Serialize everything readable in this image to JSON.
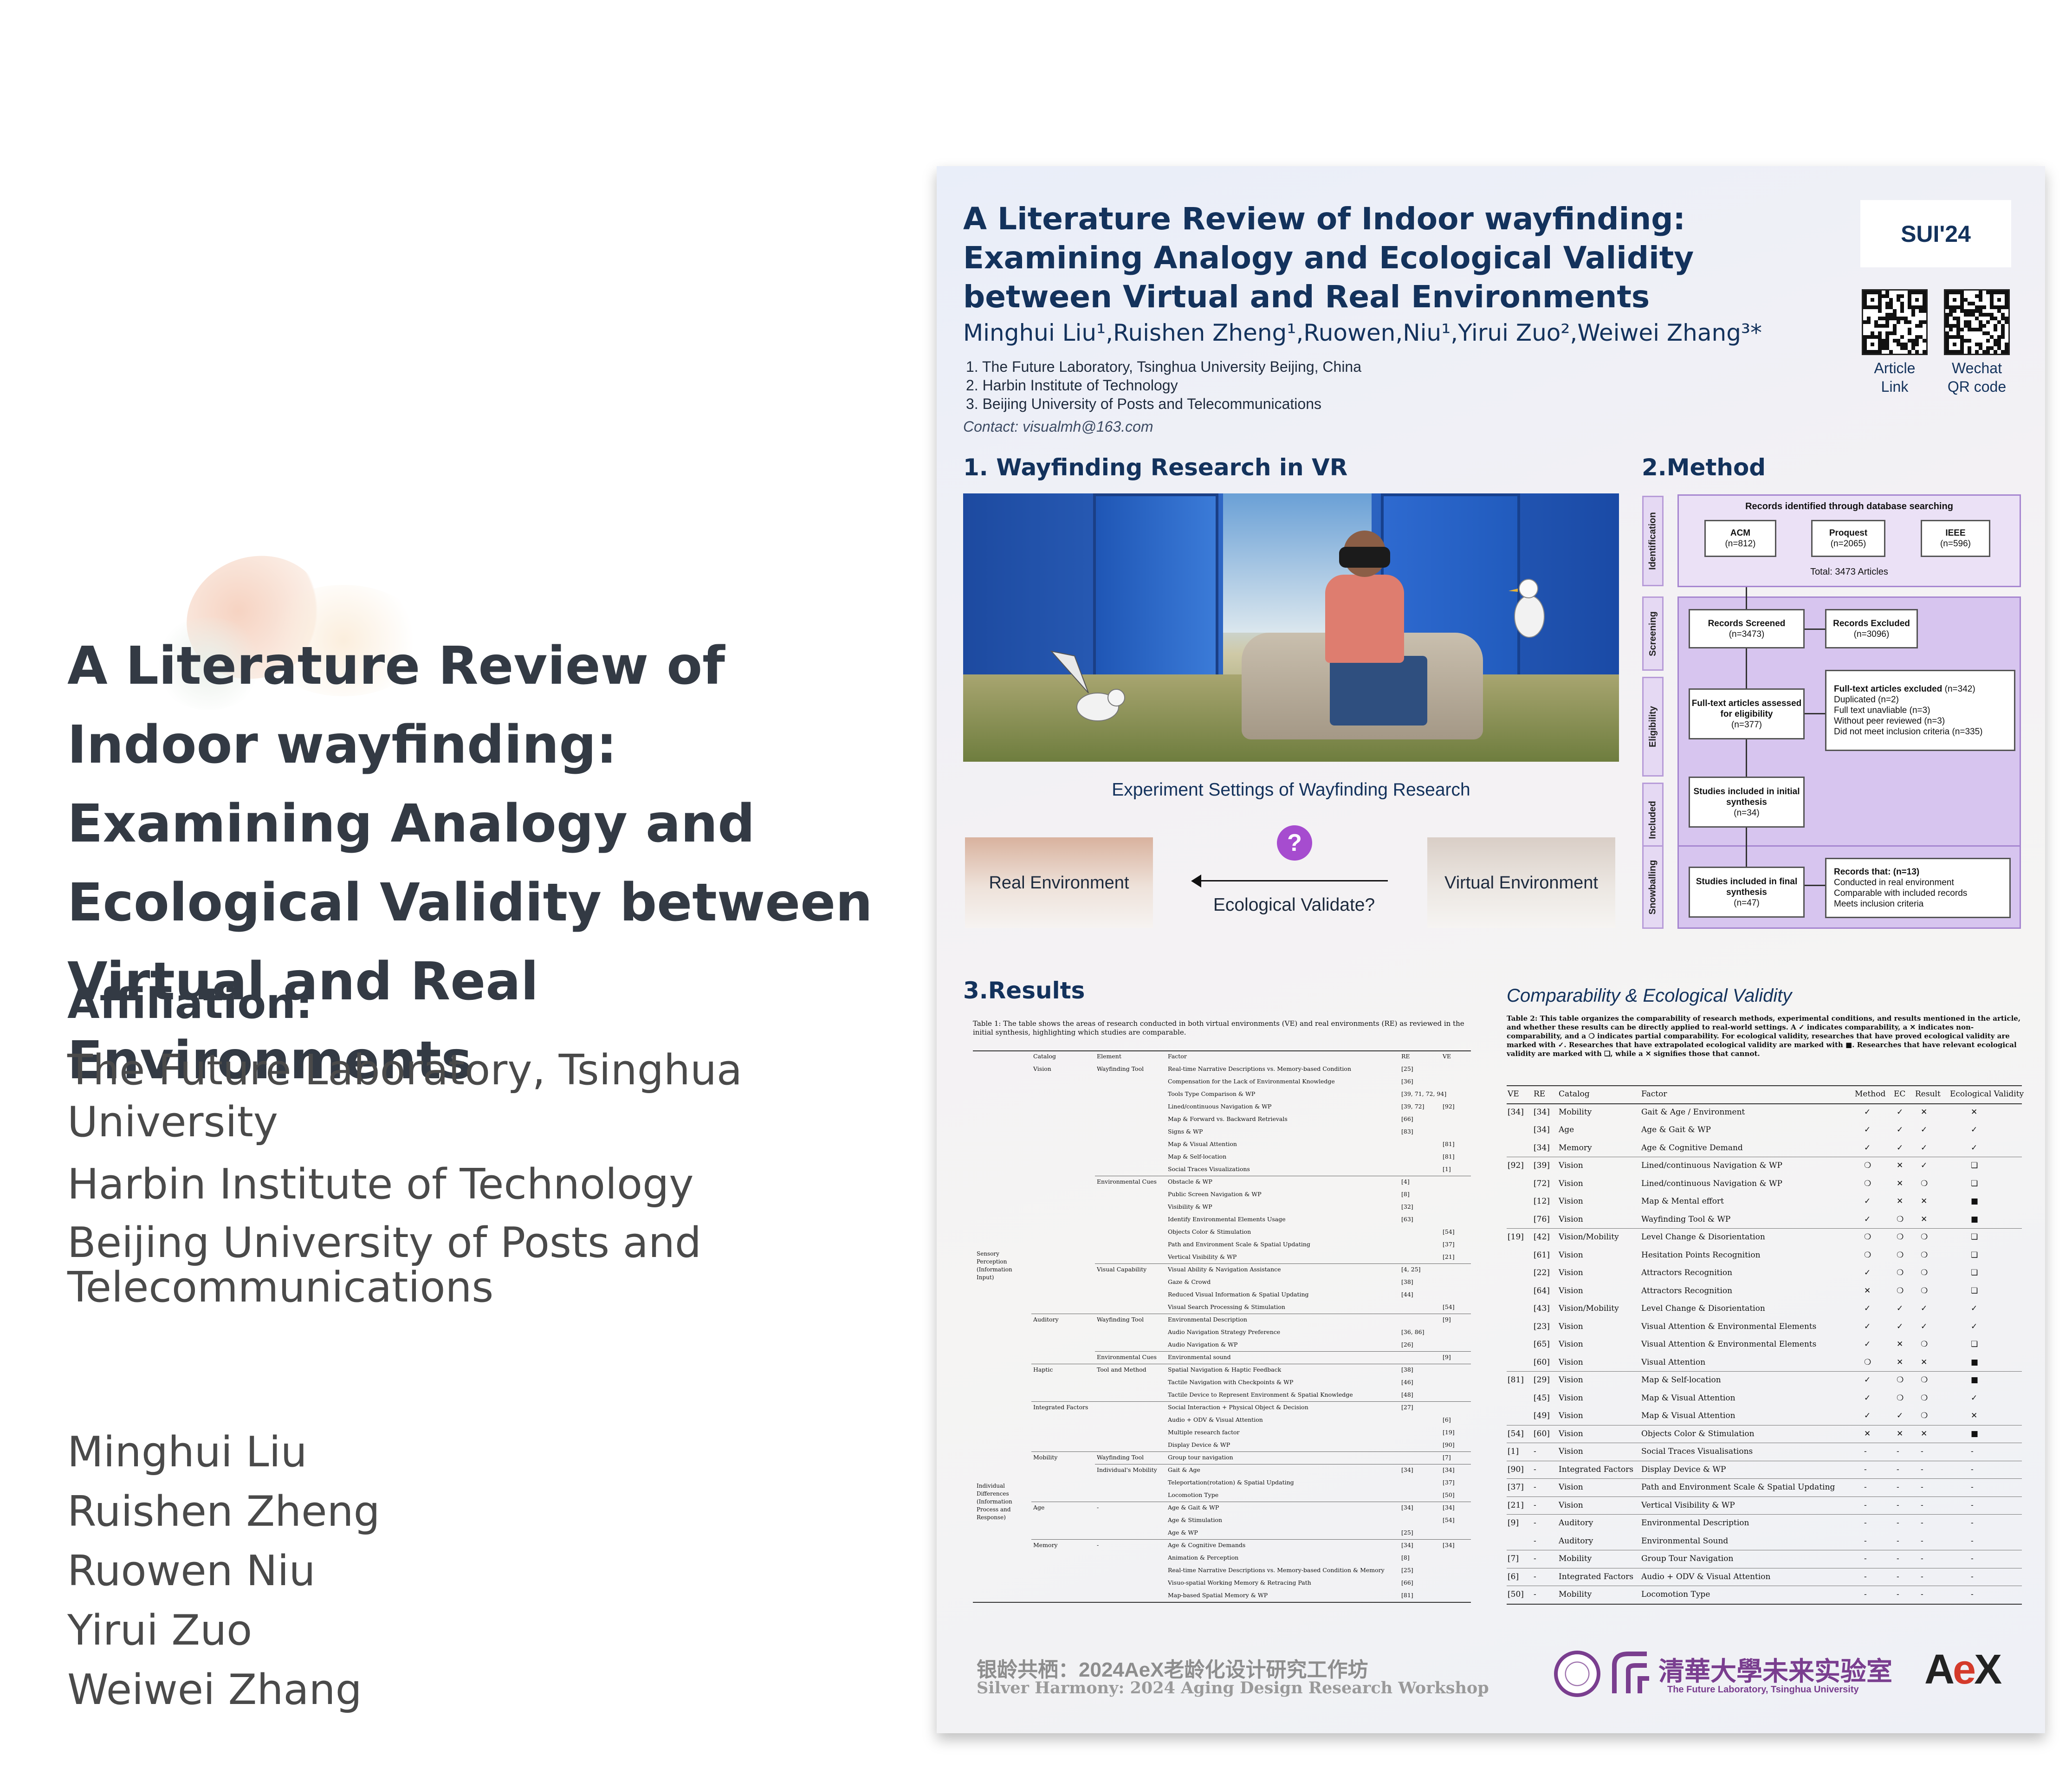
{
  "left": {
    "title": "A Literature Review of Indoor wayfinding: Examining Analogy and Ecological Validity between Virtual and Real Environments",
    "affiliation_heading": "Affiliation:",
    "affiliations": [
      "The Future Laboratory, Tsinghua University",
      "Harbin Institute of Technology",
      "Beijing University of Posts and Telecommunications"
    ],
    "authors": [
      "Minghui Liu",
      "Ruishen Zheng",
      "Ruowen Niu",
      "Yirui Zuo",
      "Weiwei Zhang"
    ]
  },
  "poster": {
    "title": "A Literature Review of Indoor wayfinding: Examining Analogy and Ecological Validity between Virtual and Real Environments",
    "authors": "Minghui Liu¹,Ruishen Zheng¹,Ruowen,Niu¹,Yirui Zuo²,Weiwei Zhang³*",
    "affiliations": [
      "1. The Future Laboratory, Tsinghua University Beijing, China",
      "2. Harbin Institute of Technology",
      "3. Beijing University of Posts and Telecommunications"
    ],
    "contact": "Contact: visualmh@163.com",
    "badge": "SUI'24",
    "qr_codes": [
      {
        "label_line1": "Article",
        "label_line2": "Link"
      },
      {
        "label_line1": "Wechat",
        "label_line2": "QR code"
      }
    ],
    "section1": {
      "heading": "1. Wayfinding Research in VR",
      "caption": "Experiment Settings of Wayfinding Research",
      "real_env": "Real Environment",
      "virtual_env": "Virtual Environment",
      "question_mark": "?",
      "ecological_question": "Ecological Validate?"
    },
    "section2": {
      "heading": "2.Method",
      "stages": [
        "Identification",
        "Screening",
        "Eligibility",
        "Included",
        "Snowballing"
      ],
      "records_identified": "Records identified through database searching",
      "db_acm": "ACM",
      "db_acm_n": "(n=812)",
      "db_proquest": "Proquest",
      "db_proquest_n": "(n=2065)",
      "db_ieee": "IEEE",
      "db_ieee_n": "(n=596)",
      "total": "Total: 3473 Articles",
      "screened": "Records Screened",
      "screened_n": "(n=3473)",
      "excluded": "Records Excluded",
      "excluded_n": "(n=3096)",
      "fulltext": "Full-text articles assessed for eligibility",
      "fulltext_n": "(n=377)",
      "ft_excluded": "Full-text articles excluded",
      "ft_excluded_n": "(n=342)",
      "ft_reasons": [
        "Duplicated (n=2)",
        "Full text unavliable (n=3)",
        "Without peer reviewed (n=3)",
        "Did not meet inclusion criteria (n=335)"
      ],
      "included": "Studies included in initial synthesis",
      "included_n": "(n=34)",
      "final": "Studies included in final synthesis",
      "final_n": "(n=47)",
      "snow_records": "Records that: (n=13)",
      "snow_reasons": [
        "Conducted in real environment",
        "Comparable with included records",
        "Meets inclusion criteria"
      ]
    },
    "section3": {
      "heading": "3.Results",
      "table1_caption": "Table 1: The table shows the areas of research conducted in both virtual environments (VE) and real environments (RE) as reviewed in the initial synthesis, highlighting which studies are comparable.",
      "table1_header": [
        "Catalog",
        "Element",
        "Factor",
        "RE",
        "VE"
      ],
      "table1_groups": [
        "Sensory Perception (Information Input)",
        "Individual Differences (Information Process and Response)"
      ],
      "table1_rows": [
        [
          "Vision",
          "Wayfinding Tool",
          "Real-time Narrative Descriptions vs. Memory-based Condition",
          "[25]",
          ""
        ],
        [
          "",
          "",
          "Compensation for the Lack of Environmental Knowledge",
          "[36]",
          ""
        ],
        [
          "",
          "",
          "Tools Type Comparison & WP",
          "[39, 71, 72, 94]",
          ""
        ],
        [
          "",
          "",
          "Lined/continuous Navigation & WP",
          "[39, 72]",
          "[92]"
        ],
        [
          "",
          "",
          "Map & Forward vs. Backward Retrievals",
          "[66]",
          ""
        ],
        [
          "",
          "",
          "Signs & WP",
          "[83]",
          ""
        ],
        [
          "",
          "",
          "Map & Visual Attention",
          "",
          "[81]"
        ],
        [
          "",
          "",
          "Map & Self-location",
          "",
          "[81]"
        ],
        [
          "",
          "",
          "Social Traces Visualizations",
          "",
          "[1]"
        ],
        [
          "",
          "Environmental Cues",
          "Obstacle & WP",
          "[4]",
          ""
        ],
        [
          "",
          "",
          "Public Screen Navigation & WP",
          "[8]",
          ""
        ],
        [
          "",
          "",
          "Visibility & WP",
          "[32]",
          ""
        ],
        [
          "",
          "",
          "Identify Environmental Elements Usage",
          "[63]",
          ""
        ],
        [
          "",
          "",
          "Objects Color & Stimulation",
          "",
          "[54]"
        ],
        [
          "",
          "",
          "Path and Environment Scale & Spatial Updating",
          "",
          "[37]"
        ],
        [
          "",
          "",
          "Vertical Visibility & WP",
          "",
          "[21]"
        ],
        [
          "",
          "Visual Capability",
          "Visual Ability & Navigation Assistance",
          "[4, 25]",
          ""
        ],
        [
          "",
          "",
          "Gaze & Crowd",
          "[38]",
          ""
        ],
        [
          "",
          "",
          "Reduced Visual Information & Spatial Updating",
          "[44]",
          ""
        ],
        [
          "",
          "",
          "Visual Search Processing & Stimulation",
          "",
          "[54]"
        ],
        [
          "Auditory",
          "Wayfinding Tool",
          "Environmental Description",
          "",
          "[9]"
        ],
        [
          "",
          "",
          "Audio Navigation Strategy Preference",
          "[36, 86]",
          ""
        ],
        [
          "",
          "",
          "Audio Navigation & WP",
          "[26]",
          ""
        ],
        [
          "",
          "Environmental Cues",
          "Environmental sound",
          "",
          "[9]"
        ],
        [
          "Haptic",
          "Tool and Method",
          "Spatial Navigation & Haptic Feedback",
          "[38]",
          ""
        ],
        [
          "",
          "",
          "Tactile Navigation with Checkpoints & WP",
          "[46]",
          ""
        ],
        [
          "",
          "",
          "Tactile Device to Represent Environment & Spatial Knowledge",
          "[48]",
          ""
        ],
        [
          "Integrated Factors",
          "",
          "Social Interaction + Physical Object & Decision",
          "[27]",
          ""
        ],
        [
          "",
          "",
          "Audio + ODV & Visual Attention",
          "",
          "[6]"
        ],
        [
          "",
          "",
          "Multiple research factor",
          "",
          "[19]"
        ],
        [
          "",
          "",
          "Display Device & WP",
          "",
          "[90]"
        ],
        [
          "Mobility",
          "Wayfinding Tool",
          "Group tour navigation",
          "",
          "[7]"
        ],
        [
          "",
          "Individual's Mobility",
          "Gait & Age",
          "[34]",
          "[34]"
        ],
        [
          "",
          "",
          "Teleportation(rotation) & Spatial Updating",
          "",
          "[37]"
        ],
        [
          "",
          "",
          "Locomotion Type",
          "",
          "[50]"
        ],
        [
          "Age",
          "-",
          "Age & Gait & WP",
          "[34]",
          "[34]"
        ],
        [
          "",
          "",
          "Age & Stimulation",
          "",
          "[54]"
        ],
        [
          "",
          "",
          "Age & WP",
          "[25]",
          ""
        ],
        [
          "Memory",
          "-",
          "Age & Cognitive Demands",
          "[34]",
          "[34]"
        ],
        [
          "",
          "",
          "Animation & Perception",
          "[8]",
          ""
        ],
        [
          "",
          "",
          "Real-time Narrative Descriptions vs. Memory-based Condition & Memory",
          "[25]",
          ""
        ],
        [
          "",
          "",
          "Visuo-spatial Working Memory & Retracing Path",
          "[66]",
          ""
        ],
        [
          "",
          "",
          "Map-based Spatial Memory & WP",
          "[81]",
          ""
        ]
      ],
      "comp_title": "Comparability & Ecological Validity",
      "table2_caption": "Table 2: This table organizes the comparability of research methods, experimental conditions, and results mentioned in the article, and whether these results can be directly applied to real-world settings. A ✓ indicates comparability, a ✕ indicates non-comparability, and a ❍ indicates partial comparability. For ecological validity, researches that have proved ecological validity are marked with ✓. Researches that have extrapolated ecological validity are marked with ■. Researches that have relevant ecological validity are marked with ❏, while a ✕ signifies those that cannot.",
      "table2_header": [
        "VE",
        "RE",
        "Catalog",
        "Factor",
        "Method",
        "EC",
        "Result",
        "Ecological Validity"
      ],
      "table2_rows": [
        [
          "[34]",
          "[34]",
          "Mobility",
          "Gait & Age / Environment",
          "✓",
          "✓",
          "✕",
          "✕"
        ],
        [
          "",
          "[34]",
          "Age",
          "Age & Gait & WP",
          "✓",
          "✓",
          "✓",
          "✓"
        ],
        [
          "",
          "[34]",
          "Memory",
          "Age & Cognitive Demand",
          "✓",
          "✓",
          "✓",
          "✓"
        ],
        [
          "[92]",
          "[39]",
          "Vision",
          "Lined/continuous Navigation & WP",
          "❍",
          "✕",
          "✓",
          "❏"
        ],
        [
          "",
          "[72]",
          "Vision",
          "Lined/continuous Navigation & WP",
          "❍",
          "✕",
          "❍",
          "❏"
        ],
        [
          "",
          "[12]",
          "Vision",
          "Map & Mental effort",
          "✓",
          "✕",
          "✕",
          "■"
        ],
        [
          "",
          "[76]",
          "Vision",
          "Wayfinding Tool & WP",
          "✓",
          "❍",
          "✕",
          "■"
        ],
        [
          "[19]",
          "[42]",
          "Vision/Mobility",
          "Level Change & Disorientation",
          "❍",
          "❍",
          "❍",
          "❏"
        ],
        [
          "",
          "[61]",
          "Vision",
          "Hesitation Points Recognition",
          "❍",
          "❍",
          "❍",
          "❏"
        ],
        [
          "",
          "[22]",
          "Vision",
          "Attractors Recognition",
          "✓",
          "❍",
          "❍",
          "❏"
        ],
        [
          "",
          "[64]",
          "Vision",
          "Attractors Recognition",
          "✕",
          "❍",
          "❍",
          "❏"
        ],
        [
          "",
          "[43]",
          "Vision/Mobility",
          "Level Change & Disorientation",
          "✓",
          "✓",
          "✓",
          "✓"
        ],
        [
          "",
          "[23]",
          "Vision",
          "Visual Attention & Environmental Elements",
          "✓",
          "✓",
          "✓",
          "✓"
        ],
        [
          "",
          "[65]",
          "Vision",
          "Visual Attention & Environmental Elements",
          "✓",
          "✕",
          "❍",
          "❏"
        ],
        [
          "",
          "[60]",
          "Vision",
          "Visual Attention",
          "❍",
          "✕",
          "✕",
          "■"
        ],
        [
          "[81]",
          "[29]",
          "Vision",
          "Map & Self-location",
          "✓",
          "❍",
          "❍",
          "■"
        ],
        [
          "",
          "[45]",
          "Vision",
          "Map & Visual Attention",
          "✓",
          "❍",
          "❍",
          "✓"
        ],
        [
          "",
          "[49]",
          "Vision",
          "Map & Visual Attention",
          "✓",
          "✓",
          "❍",
          "✕"
        ],
        [
          "[54]",
          "[60]",
          "Vision",
          "Objects Color & Stimulation",
          "✕",
          "✕",
          "✕",
          "■"
        ],
        [
          "[1]",
          "-",
          "Vision",
          "Social Traces Visualisations",
          "-",
          "-",
          "-",
          "-"
        ],
        [
          "[90]",
          "-",
          "Integrated Factors",
          "Display Device & WP",
          "-",
          "-",
          "-",
          "-"
        ],
        [
          "[37]",
          "-",
          "Vision",
          "Path and Environment Scale & Spatial Updating",
          "-",
          "-",
          "-",
          "-"
        ],
        [
          "[21]",
          "-",
          "Vision",
          "Vertical Visibility & WP",
          "-",
          "-",
          "-",
          "-"
        ],
        [
          "[9]",
          "-",
          "Auditory",
          "Environmental Description",
          "-",
          "-",
          "-",
          "-"
        ],
        [
          "",
          "-",
          "Auditory",
          "Environmental Sound",
          "-",
          "-",
          "-",
          "-"
        ],
        [
          "[7]",
          "-",
          "Mobility",
          "Group Tour Navigation",
          "-",
          "-",
          "-",
          "-"
        ],
        [
          "[6]",
          "-",
          "Integrated Factors",
          "Audio + ODV & Visual Attention",
          "-",
          "-",
          "-",
          "-"
        ],
        [
          "[50]",
          "-",
          "Mobility",
          "Locomotion Type",
          "-",
          "-",
          "-",
          "-"
        ]
      ]
    },
    "footer": {
      "workshop_cn": "银龄共栖：2024AeX老龄化设计研究工作坊",
      "workshop_en": "Silver Harmony: 2024 Aging Design Research Workshop",
      "lab_cn": "清華大學未来实验室",
      "lab_en": "The Future Laboratory, Tsinghua University",
      "aex_a": "A",
      "aex_e": "e",
      "aex_x": "X"
    }
  },
  "icons": [
    "question-icon",
    "arrow-left-icon",
    "qr-code-icon",
    "university-seal-icon",
    "future-lab-logo"
  ],
  "colors": {
    "title_navy": "#13325c",
    "method_purple": "#a686d0",
    "accent_purple": "#a64ccf",
    "aex_red": "#d43a2b"
  }
}
